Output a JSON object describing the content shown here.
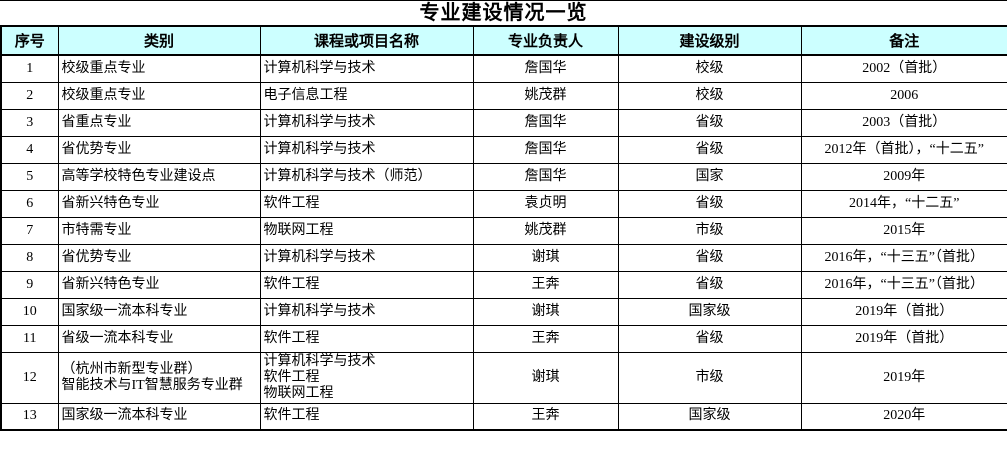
{
  "title": "专业建设情况一览",
  "colors": {
    "header_bg": "#CCFFFF",
    "border": "#000000",
    "text": "#000000",
    "page_bg": "#FFFFFF"
  },
  "table": {
    "headers": [
      "序号",
      "类别",
      "课程或项目名称",
      "专业负责人",
      "建设级别",
      "备注"
    ],
    "rows": [
      [
        "1",
        "校级重点专业",
        "计算机科学与技术",
        "詹国华",
        "校级",
        "2002（首批）"
      ],
      [
        "2",
        "校级重点专业",
        "电子信息工程",
        "姚茂群",
        "校级",
        "2006"
      ],
      [
        "3",
        "省重点专业",
        "计算机科学与技术",
        "詹国华",
        "省级",
        "2003（首批）"
      ],
      [
        "4",
        "省优势专业",
        "计算机科学与技术",
        "詹国华",
        "省级",
        "2012年（首批），“十二五”"
      ],
      [
        "5",
        "高等学校特色专业建设点",
        "计算机科学与技术（师范）",
        "詹国华",
        "国家",
        "2009年"
      ],
      [
        "6",
        "省新兴特色专业",
        "软件工程",
        "袁贞明",
        "省级",
        "2014年，“十二五”"
      ],
      [
        "7",
        "市特需专业",
        "物联网工程",
        "姚茂群",
        "市级",
        "2015年"
      ],
      [
        "8",
        "省优势专业",
        "计算机科学与技术",
        "谢琪",
        "省级",
        "2016年，“十三五”（首批）"
      ],
      [
        "9",
        "省新兴特色专业",
        "软件工程",
        "王奔",
        "省级",
        "2016年，“十三五”（首批）"
      ],
      [
        "10",
        "国家级一流本科专业",
        "计算机科学与技术",
        "谢琪",
        "国家级",
        "2019年（首批）"
      ],
      [
        "11",
        "省级一流本科专业",
        "软件工程",
        "王奔",
        "省级",
        "2019年（首批）"
      ],
      [
        "12",
        "（杭州市新型专业群）\n智能技术与IT智慧服务专业群",
        "计算机科学与技术\n软件工程\n物联网工程",
        "谢琪",
        "市级",
        "2019年"
      ],
      [
        "13",
        "国家级一流本科专业",
        "软件工程",
        "王奔",
        "国家级",
        "2020年"
      ]
    ]
  }
}
